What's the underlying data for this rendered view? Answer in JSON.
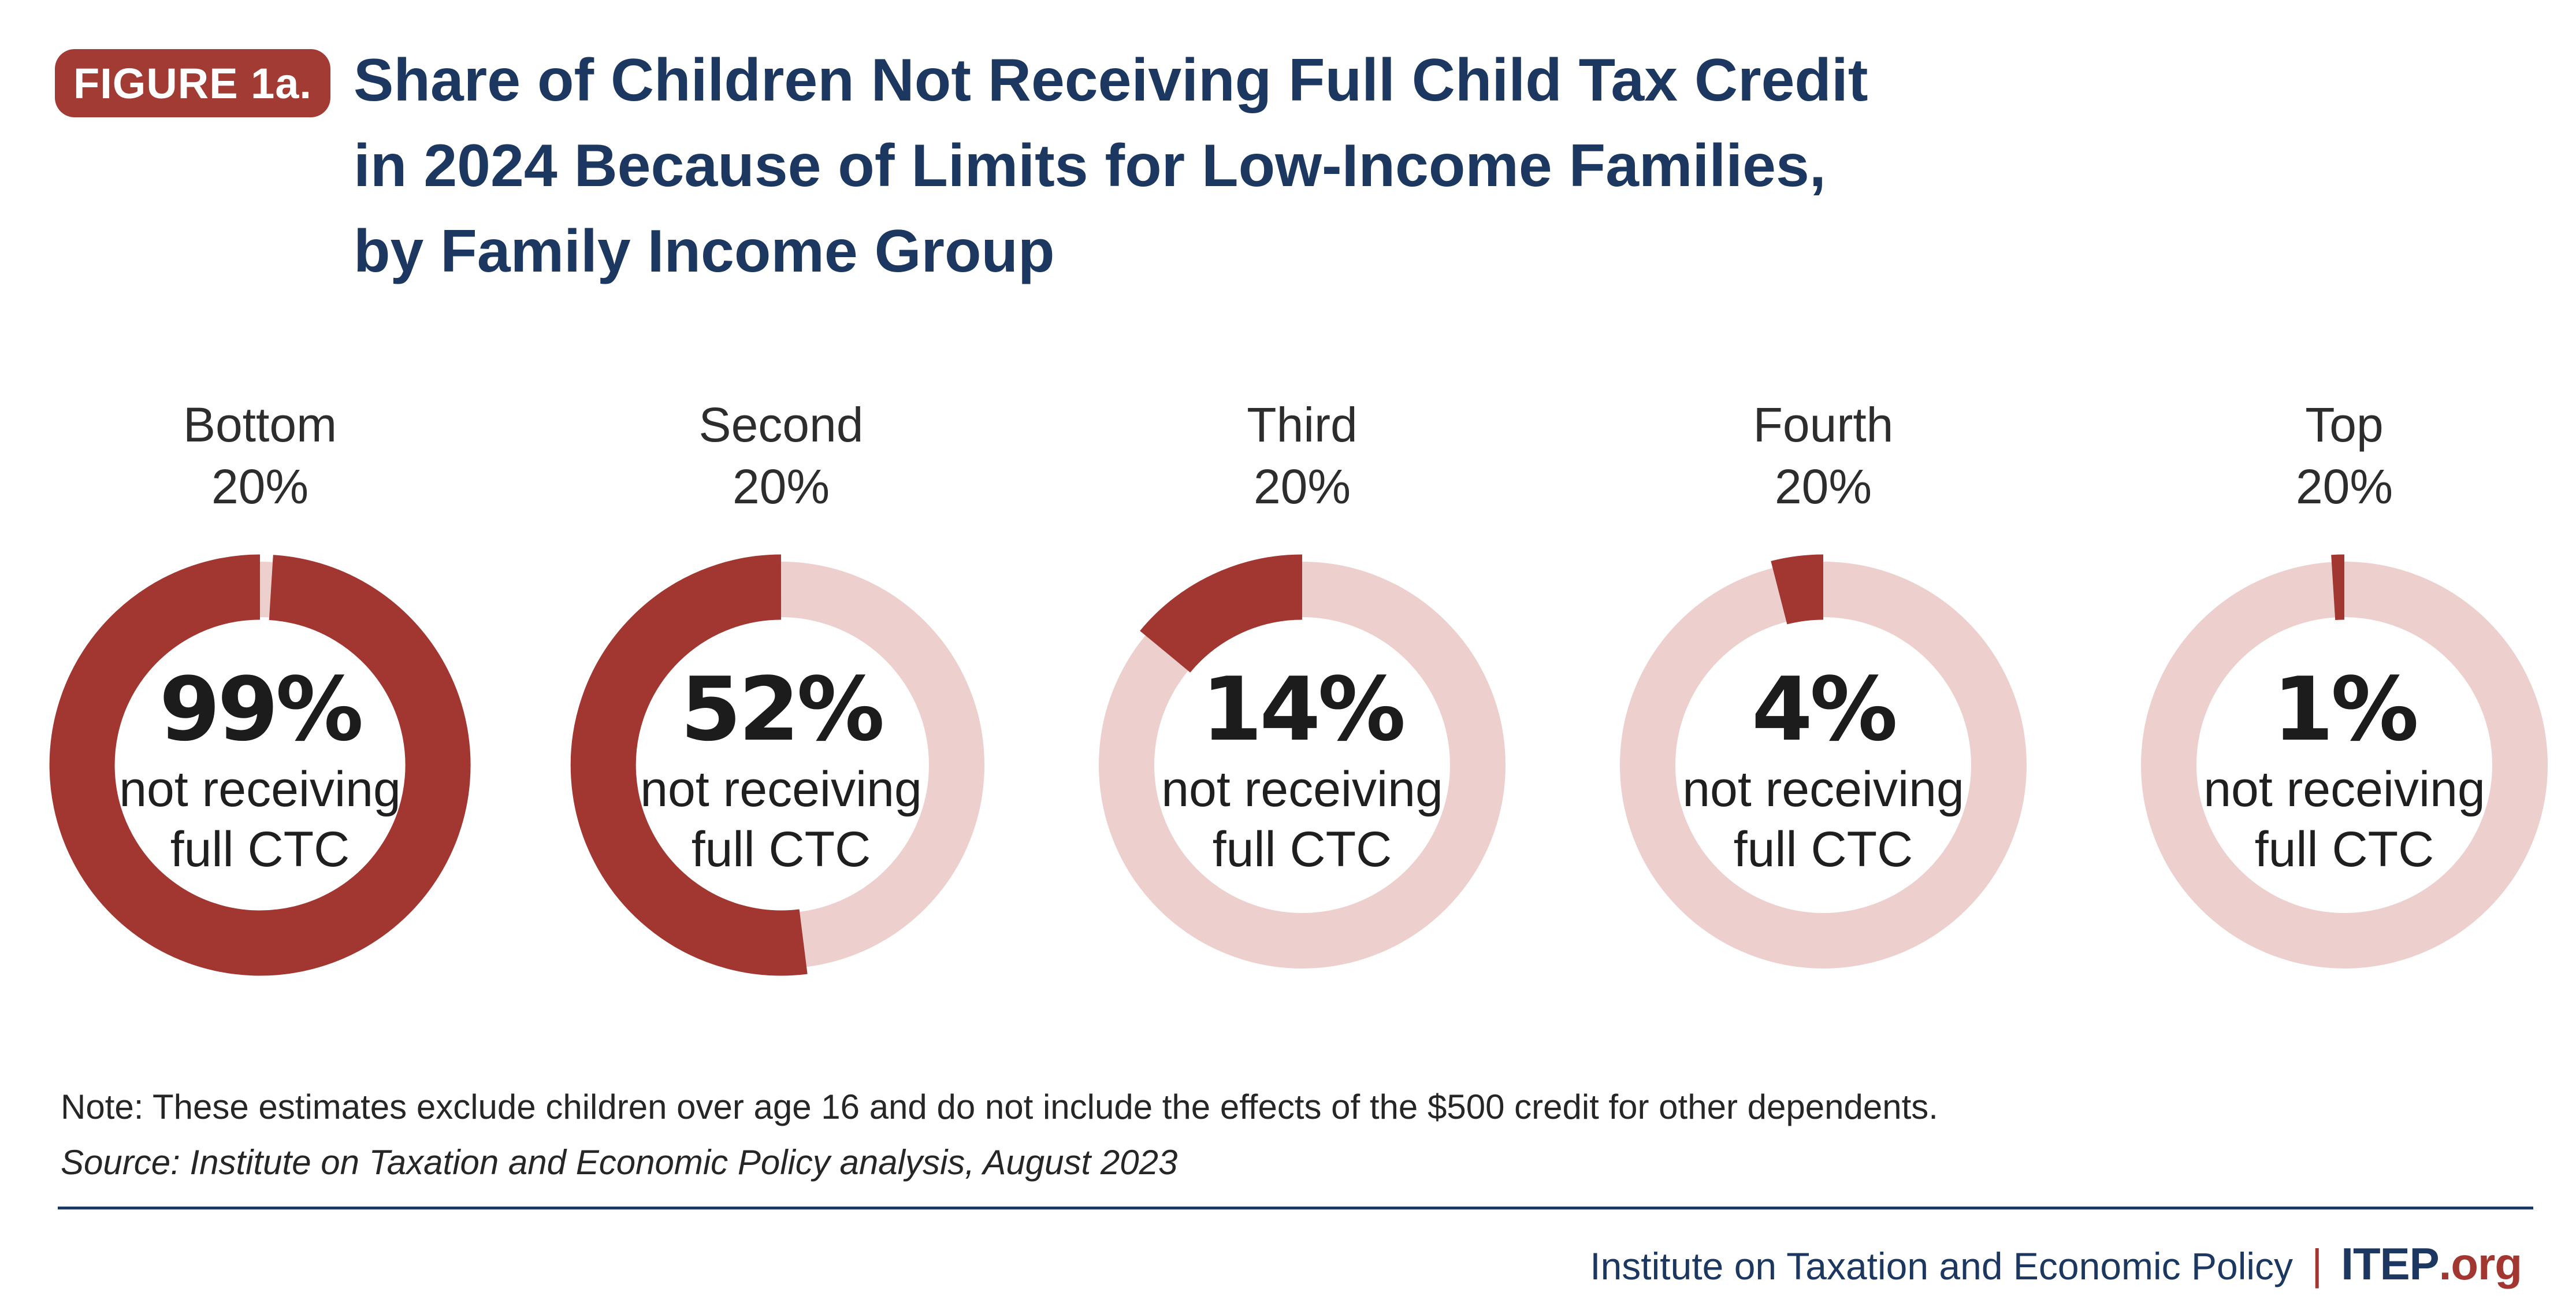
{
  "figure_label": "FIGURE 1a.",
  "title_lines": [
    "Share of Children Not Receiving Full Child Tax Credit",
    "in 2024 Because of Limits for Low-Income Families,",
    "by Family Income Group"
  ],
  "chart_data": {
    "type": "pie",
    "variant": "donut",
    "title": "Share of Children Not Receiving Full Child Tax Credit in 2024 Because of Limits for Low-Income Families, by Family Income Group",
    "categories": [
      "Bottom 20%",
      "Second 20%",
      "Third 20%",
      "Fourth 20%",
      "Top 20%"
    ],
    "label_lines": [
      [
        "Bottom",
        "20%"
      ],
      [
        "Second",
        "20%"
      ],
      [
        "Third",
        "20%"
      ],
      [
        "Fourth",
        "20%"
      ],
      [
        "Top",
        "20%"
      ]
    ],
    "values": [
      99,
      52,
      14,
      4,
      1
    ],
    "value_labels": [
      "99%",
      "52%",
      "14%",
      "4%",
      "1%"
    ],
    "center_caption_lines": [
      "not receiving",
      "full CTC"
    ],
    "units": "%",
    "start_position": "12 o'clock",
    "direction": "counterclockwise",
    "legend": "none",
    "colors": {
      "filled": "#A23630",
      "remainder": "#EDCFCD"
    }
  },
  "note": "Note: These estimates exclude children over age 16 and do not include the effects of the $500 credit for other dependents.",
  "source": "Source: Institute on Taxation and Economic Policy analysis, August 2023",
  "footer": {
    "organization": "Institute on Taxation and Economic Policy",
    "separator": "|",
    "site_name": "ITEP",
    "site_suffix": ".org"
  },
  "colors": {
    "navy": "#1D3860",
    "badge_red": "#A33B35",
    "donut_red": "#A23630",
    "remainder_pink": "#EDCFCD",
    "text_dark": "#262626"
  }
}
